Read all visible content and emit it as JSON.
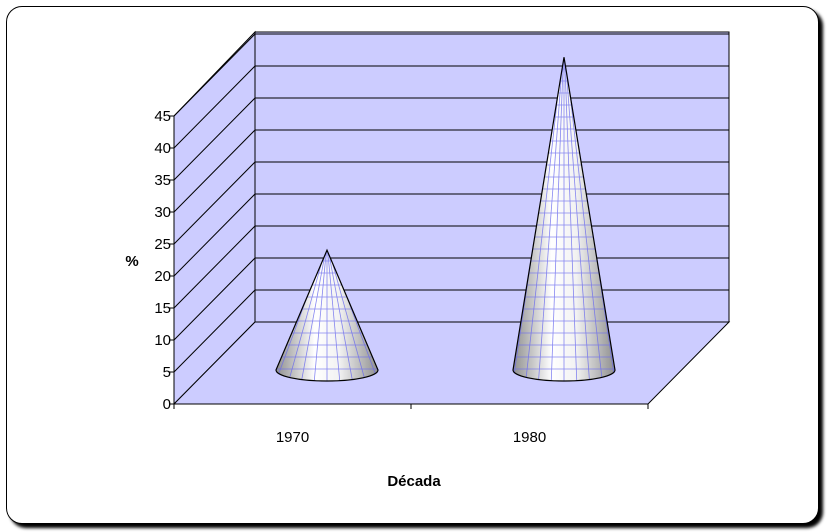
{
  "chart_data": {
    "type": "bar",
    "bar_shape": "cone-3d",
    "title": "",
    "xlabel": "Década",
    "ylabel": "%",
    "categories": [
      "1970",
      "1980"
    ],
    "values": [
      18,
      47
    ],
    "ylim": [
      0,
      45
    ],
    "y_ticks": [
      "0",
      "5",
      "10",
      "15",
      "20",
      "25",
      "30",
      "35",
      "40",
      "45"
    ],
    "grid": true,
    "legend": "none",
    "colors": {
      "walls": "#ccccff",
      "cone_light": "#ffffff",
      "cone_dark": "#8f8f8f",
      "cone_grid": "#6a6aee"
    }
  }
}
